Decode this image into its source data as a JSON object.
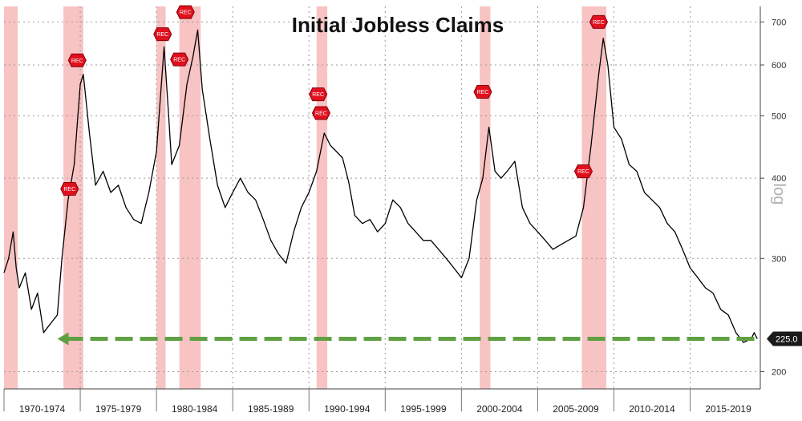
{
  "chart_data": {
    "type": "line",
    "title": "Initial Jobless Claims",
    "y_scale": "log",
    "y_scale_label": "log",
    "ylim": [
      188,
      740
    ],
    "y_ticks": [
      {
        "value": 200,
        "label": "200"
      },
      {
        "value": 300,
        "label": "300"
      },
      {
        "value": 400,
        "label": "400"
      },
      {
        "value": 500,
        "label": "500"
      },
      {
        "value": 600,
        "label": "600"
      },
      {
        "value": 700,
        "label": "700"
      }
    ],
    "xlim": [
      1970.0,
      2019.6
    ],
    "x_periods": [
      "1970-1974",
      "1975-1979",
      "1980-1984",
      "1985-1989",
      "1990-1994",
      "1995-1999",
      "2000-2004",
      "2005-2009",
      "2010-2014",
      "2015-2019"
    ],
    "recessions": [
      {
        "start": 1970.0,
        "end": 1970.9
      },
      {
        "start": 1973.9,
        "end": 1975.2
      },
      {
        "start": 1980.0,
        "end": 1980.6
      },
      {
        "start": 1981.5,
        "end": 1982.9
      },
      {
        "start": 1990.5,
        "end": 1991.2
      },
      {
        "start": 2001.2,
        "end": 2001.9
      },
      {
        "start": 2007.9,
        "end": 2009.5
      }
    ],
    "rec_markers": [
      {
        "x": 1974.3,
        "y": 385,
        "label": "REC"
      },
      {
        "x": 1974.8,
        "y": 610,
        "label": "REC"
      },
      {
        "x": 1980.4,
        "y": 670,
        "label": "REC"
      },
      {
        "x": 1981.5,
        "y": 612,
        "label": "REC"
      },
      {
        "x": 1981.9,
        "y": 725,
        "label": "REC"
      },
      {
        "x": 1990.6,
        "y": 540,
        "label": "REC"
      },
      {
        "x": 1990.8,
        "y": 505,
        "label": "REC"
      },
      {
        "x": 2001.4,
        "y": 545,
        "label": "REC"
      },
      {
        "x": 2008.0,
        "y": 410,
        "label": "REC"
      },
      {
        "x": 2009.0,
        "y": 700,
        "label": "REC"
      }
    ],
    "series": [
      {
        "values": [
          [
            1970.0,
            285
          ],
          [
            1970.3,
            300
          ],
          [
            1970.6,
            330
          ],
          [
            1970.8,
            290
          ],
          [
            1971.0,
            270
          ],
          [
            1971.4,
            285
          ],
          [
            1971.8,
            250
          ],
          [
            1972.2,
            265
          ],
          [
            1972.6,
            230
          ],
          [
            1972.9,
            235
          ],
          [
            1973.2,
            240
          ],
          [
            1973.5,
            245
          ],
          [
            1973.8,
            300
          ],
          [
            1974.2,
            370
          ],
          [
            1974.6,
            420
          ],
          [
            1975.0,
            560
          ],
          [
            1975.2,
            580
          ],
          [
            1975.6,
            470
          ],
          [
            1976.0,
            390
          ],
          [
            1976.5,
            410
          ],
          [
            1977.0,
            380
          ],
          [
            1977.5,
            390
          ],
          [
            1978.0,
            360
          ],
          [
            1978.5,
            345
          ],
          [
            1979.0,
            340
          ],
          [
            1979.5,
            380
          ],
          [
            1980.0,
            440
          ],
          [
            1980.5,
            640
          ],
          [
            1980.8,
            500
          ],
          [
            1981.0,
            420
          ],
          [
            1981.5,
            450
          ],
          [
            1982.0,
            560
          ],
          [
            1982.4,
            620
          ],
          [
            1982.7,
            680
          ],
          [
            1983.0,
            550
          ],
          [
            1983.5,
            460
          ],
          [
            1984.0,
            390
          ],
          [
            1984.5,
            360
          ],
          [
            1985.0,
            380
          ],
          [
            1985.5,
            400
          ],
          [
            1986.0,
            380
          ],
          [
            1986.5,
            370
          ],
          [
            1987.0,
            345
          ],
          [
            1987.5,
            320
          ],
          [
            1988.0,
            305
          ],
          [
            1988.5,
            295
          ],
          [
            1989.0,
            330
          ],
          [
            1989.5,
            360
          ],
          [
            1990.0,
            380
          ],
          [
            1990.5,
            410
          ],
          [
            1991.0,
            470
          ],
          [
            1991.4,
            450
          ],
          [
            1991.8,
            440
          ],
          [
            1992.2,
            430
          ],
          [
            1992.6,
            395
          ],
          [
            1993.0,
            350
          ],
          [
            1993.5,
            340
          ],
          [
            1994.0,
            345
          ],
          [
            1994.5,
            330
          ],
          [
            1995.0,
            340
          ],
          [
            1995.5,
            370
          ],
          [
            1996.0,
            360
          ],
          [
            1996.5,
            340
          ],
          [
            1997.0,
            330
          ],
          [
            1997.5,
            320
          ],
          [
            1998.0,
            320
          ],
          [
            1998.5,
            310
          ],
          [
            1999.0,
            300
          ],
          [
            1999.5,
            290
          ],
          [
            2000.0,
            280
          ],
          [
            2000.5,
            300
          ],
          [
            2001.0,
            370
          ],
          [
            2001.4,
            400
          ],
          [
            2001.8,
            480
          ],
          [
            2002.2,
            410
          ],
          [
            2002.6,
            400
          ],
          [
            2003.0,
            410
          ],
          [
            2003.5,
            425
          ],
          [
            2004.0,
            360
          ],
          [
            2004.5,
            340
          ],
          [
            2005.0,
            330
          ],
          [
            2005.5,
            320
          ],
          [
            2006.0,
            310
          ],
          [
            2006.5,
            315
          ],
          [
            2007.0,
            320
          ],
          [
            2007.5,
            325
          ],
          [
            2008.0,
            360
          ],
          [
            2008.5,
            450
          ],
          [
            2009.0,
            580
          ],
          [
            2009.3,
            660
          ],
          [
            2009.6,
            600
          ],
          [
            2010.0,
            480
          ],
          [
            2010.5,
            460
          ],
          [
            2011.0,
            420
          ],
          [
            2011.5,
            410
          ],
          [
            2012.0,
            380
          ],
          [
            2012.5,
            370
          ],
          [
            2013.0,
            360
          ],
          [
            2013.5,
            340
          ],
          [
            2014.0,
            330
          ],
          [
            2014.5,
            310
          ],
          [
            2015.0,
            290
          ],
          [
            2015.5,
            280
          ],
          [
            2016.0,
            270
          ],
          [
            2016.5,
            265
          ],
          [
            2017.0,
            250
          ],
          [
            2017.5,
            245
          ],
          [
            2018.0,
            230
          ],
          [
            2018.5,
            222
          ],
          [
            2019.0,
            225
          ],
          [
            2019.2,
            230
          ],
          [
            2019.4,
            225
          ]
        ]
      }
    ],
    "reference_line": {
      "value": 225.0,
      "label": "225.0",
      "style": "dashed",
      "color": "#5fa043"
    },
    "colors": {
      "recession": "#f7b9b8",
      "line": "#000000",
      "badge": "#1a1a1a",
      "marker": "#e0101e"
    }
  }
}
